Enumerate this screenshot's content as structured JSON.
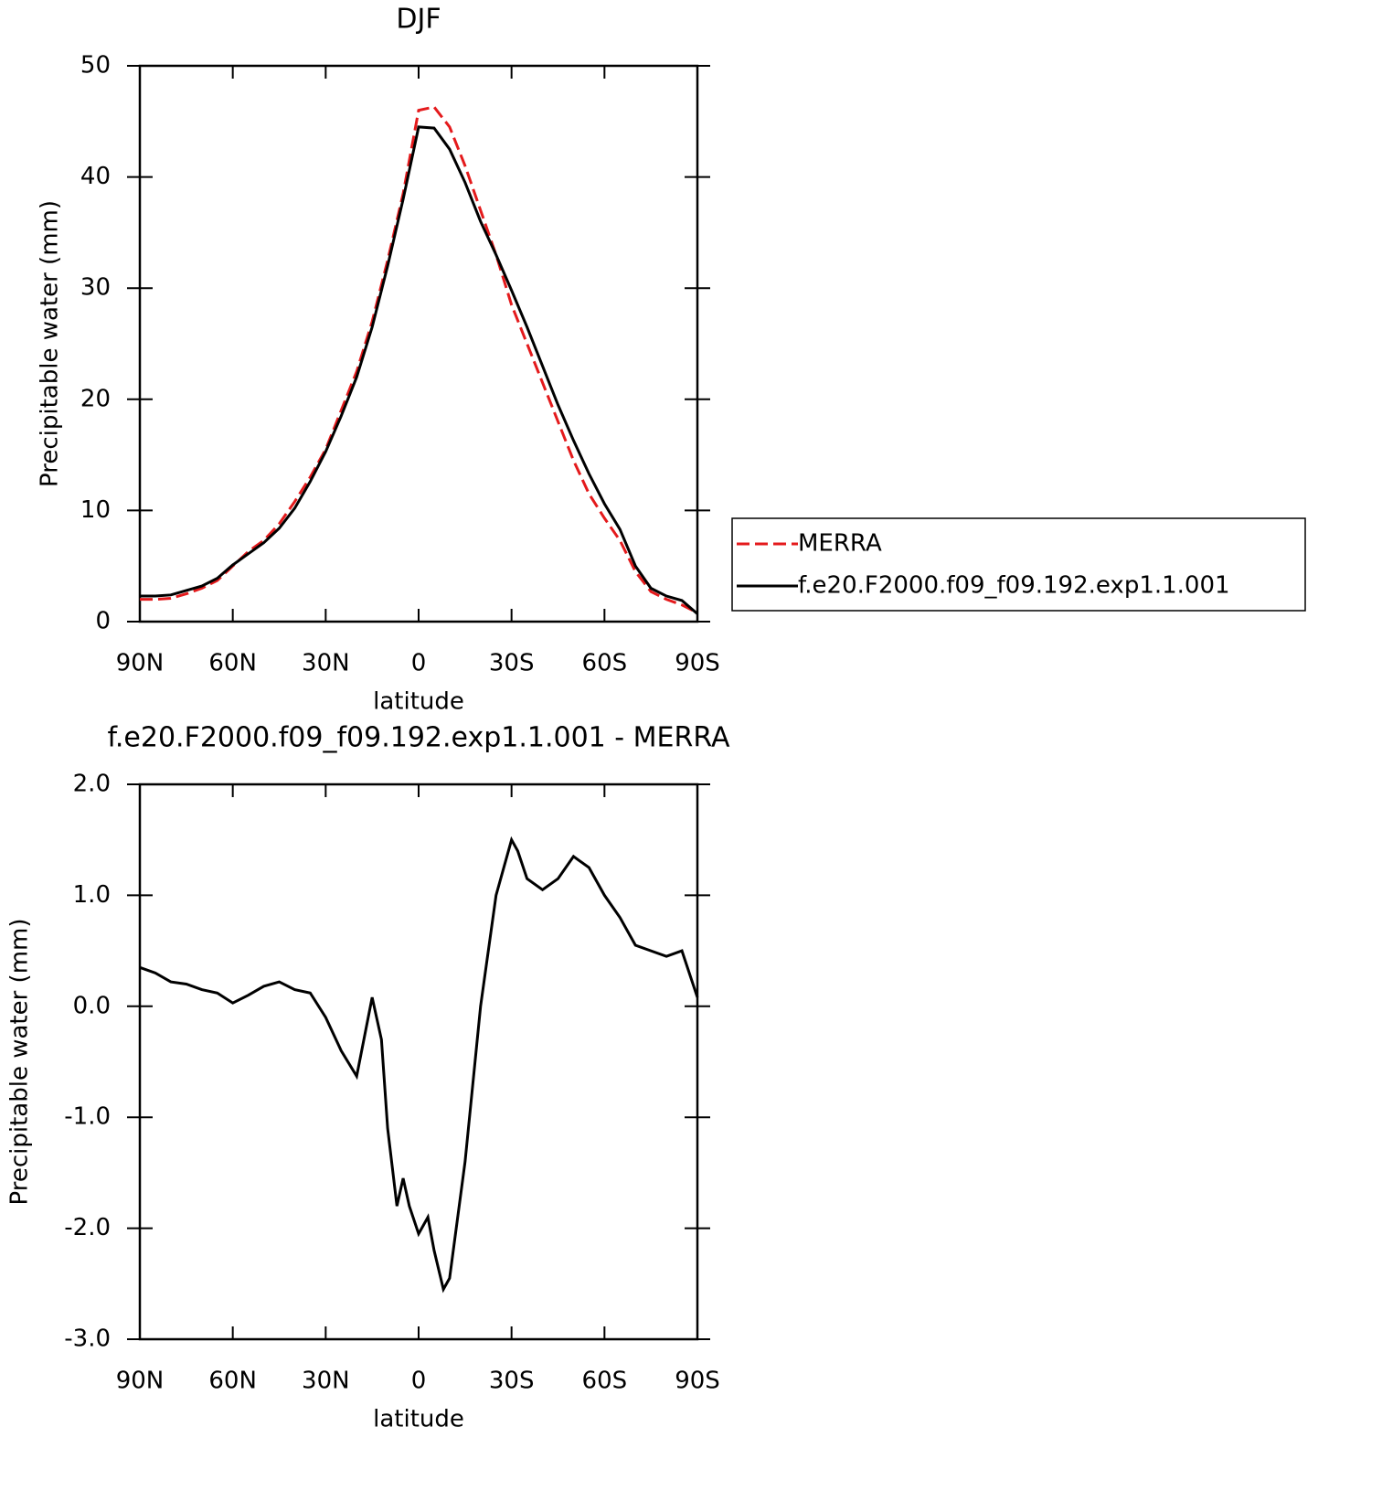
{
  "chart_data": [
    {
      "type": "line",
      "title": "DJF",
      "xlabel": "latitude",
      "ylabel": "Precipitable water (mm)",
      "x": [
        90,
        85,
        80,
        75,
        70,
        65,
        60,
        55,
        50,
        45,
        40,
        35,
        30,
        25,
        20,
        15,
        10,
        5,
        0,
        -5,
        -10,
        -15,
        -20,
        -25,
        -30,
        -35,
        -40,
        -45,
        -50,
        -55,
        -60,
        -65,
        -70,
        -75,
        -80,
        -85,
        -90
      ],
      "series": [
        {
          "name": "MERRA",
          "color": "#e41a1c",
          "dash": "dashed",
          "values": [
            2.0,
            2.0,
            2.1,
            2.5,
            3.0,
            3.7,
            5.0,
            6.3,
            7.3,
            8.8,
            10.8,
            13.0,
            15.5,
            19.0,
            22.5,
            27.0,
            32.5,
            38.5,
            46.0,
            46.3,
            44.5,
            41.0,
            37.0,
            33.0,
            28.5,
            25.0,
            21.5,
            18.0,
            14.5,
            11.5,
            9.3,
            7.3,
            4.5,
            2.7,
            2.0,
            1.5,
            0.8
          ]
        },
        {
          "name": "f.e20.F2000.f09_f09.192.exp1.1.001",
          "color": "#000000",
          "dash": "solid",
          "values": [
            2.3,
            2.3,
            2.4,
            2.8,
            3.2,
            3.9,
            5.1,
            6.1,
            7.1,
            8.4,
            10.2,
            12.6,
            15.3,
            18.5,
            22.0,
            26.5,
            32.0,
            38.0,
            44.5,
            44.4,
            42.5,
            39.5,
            36.0,
            33.0,
            29.8,
            26.5,
            23.0,
            19.5,
            16.3,
            13.3,
            10.6,
            8.3,
            5.0,
            3.0,
            2.3,
            1.9,
            0.7
          ]
        }
      ],
      "xlim": [
        90,
        -90
      ],
      "xticks": [
        {
          "value": 90,
          "label": "90N"
        },
        {
          "value": 60,
          "label": "60N"
        },
        {
          "value": 30,
          "label": "30N"
        },
        0,
        {
          "value": -30,
          "label": "30S"
        },
        {
          "value": -60,
          "label": "60S"
        },
        {
          "value": -90,
          "label": "90S"
        }
      ],
      "ylim": [
        0,
        50
      ],
      "yticks": [
        0,
        10,
        20,
        30,
        40,
        50
      ],
      "legend": "right"
    },
    {
      "type": "line",
      "title": "f.e20.F2000.f09_f09.192.exp1.1.001 - MERRA",
      "xlabel": "latitude",
      "ylabel": "Precipitable water (mm)",
      "x": [
        90,
        85,
        80,
        75,
        70,
        65,
        60,
        55,
        50,
        45,
        40,
        35,
        30,
        25,
        20,
        15,
        12,
        10,
        7,
        5,
        3,
        0,
        -3,
        -5,
        -8,
        -10,
        -15,
        -20,
        -25,
        -30,
        -32,
        -35,
        -40,
        -45,
        -50,
        -55,
        -60,
        -65,
        -70,
        -75,
        -80,
        -85,
        -90
      ],
      "series": [
        {
          "color": "#000000",
          "dash": "solid",
          "values": [
            0.35,
            0.3,
            0.22,
            0.2,
            0.15,
            0.12,
            0.03,
            0.1,
            0.18,
            0.22,
            0.15,
            0.12,
            -0.1,
            -0.4,
            -0.63,
            0.08,
            -0.3,
            -1.1,
            -1.8,
            -1.55,
            -1.8,
            -2.05,
            -1.9,
            -2.2,
            -2.55,
            -2.45,
            -1.4,
            0.0,
            1.0,
            1.5,
            1.4,
            1.15,
            1.05,
            1.15,
            1.35,
            1.25,
            1.0,
            0.8,
            0.55,
            0.5,
            0.45,
            0.5,
            0.08
          ]
        }
      ],
      "xlim": [
        90,
        -90
      ],
      "xticks": [
        {
          "value": 90,
          "label": "90N"
        },
        {
          "value": 60,
          "label": "60N"
        },
        {
          "value": 30,
          "label": "30N"
        },
        0,
        {
          "value": -30,
          "label": "30S"
        },
        {
          "value": -60,
          "label": "60S"
        },
        {
          "value": -90,
          "label": "90S"
        }
      ],
      "ylim": [
        -3,
        2
      ],
      "yticks": [
        {
          "value": -3,
          "label": "-3.0"
        },
        {
          "value": -2,
          "label": "-2.0"
        },
        {
          "value": -1,
          "label": "-1.0"
        },
        {
          "value": 0,
          "label": "0.0"
        },
        {
          "value": 1,
          "label": "1.0"
        },
        {
          "value": 2,
          "label": "2.0"
        }
      ]
    }
  ]
}
